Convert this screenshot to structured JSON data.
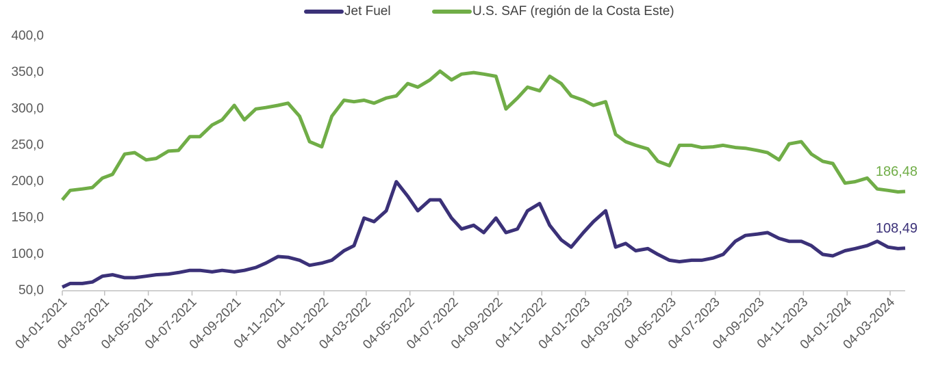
{
  "chart_data": {
    "type": "line",
    "x": [
      "2021-01-04",
      "2021-01-15",
      "2021-02-01",
      "2021-02-15",
      "2021-03-01",
      "2021-03-15",
      "2021-04-01",
      "2021-04-15",
      "2021-05-01",
      "2021-05-15",
      "2021-06-01",
      "2021-06-15",
      "2021-07-01",
      "2021-07-15",
      "2021-08-01",
      "2021-08-15",
      "2021-09-01",
      "2021-09-15",
      "2021-10-01",
      "2021-10-15",
      "2021-11-01",
      "2021-11-15",
      "2021-12-01",
      "2021-12-15",
      "2022-01-01",
      "2022-01-15",
      "2022-02-01",
      "2022-02-15",
      "2022-03-01",
      "2022-03-15",
      "2022-04-01",
      "2022-04-15",
      "2022-05-01",
      "2022-05-15",
      "2022-06-01",
      "2022-06-15",
      "2022-07-01",
      "2022-07-15",
      "2022-08-01",
      "2022-08-15",
      "2022-09-01",
      "2022-09-15",
      "2022-10-01",
      "2022-10-15",
      "2022-11-01",
      "2022-11-15",
      "2022-12-01",
      "2022-12-15",
      "2023-01-01",
      "2023-01-15",
      "2023-02-01",
      "2023-02-15",
      "2023-03-01",
      "2023-03-15",
      "2023-04-01",
      "2023-04-15",
      "2023-05-01",
      "2023-05-15",
      "2023-06-01",
      "2023-06-15",
      "2023-07-01",
      "2023-07-15",
      "2023-08-01",
      "2023-08-15",
      "2023-09-01",
      "2023-09-15",
      "2023-10-01",
      "2023-10-15",
      "2023-11-01",
      "2023-11-15",
      "2023-12-01",
      "2023-12-15",
      "2024-01-01",
      "2024-01-15",
      "2024-02-01",
      "2024-02-15",
      "2024-03-01",
      "2024-03-15",
      "2024-03-25"
    ],
    "series": [
      {
        "name": "Jet Fuel",
        "color": "#3b3178",
        "values": [
          55,
          60,
          60,
          62,
          70,
          72,
          68,
          68,
          70,
          72,
          73,
          75,
          78,
          78,
          76,
          78,
          76,
          78,
          82,
          88,
          97,
          96,
          92,
          85,
          88,
          92,
          105,
          112,
          150,
          145,
          160,
          200,
          180,
          160,
          175,
          175,
          150,
          135,
          140,
          130,
          150,
          130,
          135,
          160,
          170,
          140,
          120,
          110,
          130,
          145,
          160,
          110,
          115,
          105,
          108,
          100,
          92,
          90,
          92,
          92,
          95,
          100,
          118,
          126,
          128,
          130,
          122,
          118,
          118,
          112,
          100,
          98,
          105,
          108,
          112,
          118,
          110,
          108,
          108.49
        ],
        "value_labels": [
          null,
          null,
          null,
          null,
          null,
          null,
          null,
          null,
          null,
          null,
          null,
          null,
          null,
          null,
          null,
          null,
          null,
          null,
          null,
          null,
          null,
          null,
          null,
          null,
          null,
          null,
          null,
          null,
          null,
          null,
          null,
          null,
          null,
          null,
          null,
          null,
          null,
          null,
          null,
          null,
          null,
          null,
          null,
          null,
          null,
          null,
          null,
          null,
          null,
          null,
          null,
          null,
          null,
          null,
          null,
          null,
          null,
          null,
          null,
          null,
          null,
          null,
          null,
          null,
          null,
          null,
          null,
          null,
          null,
          null,
          null,
          null,
          null,
          null,
          null,
          null,
          null,
          null,
          "108,49"
        ]
      },
      {
        "name": "U.S. SAF (región de la Costa Este)",
        "color": "#70ad47",
        "values": [
          175,
          188,
          190,
          192,
          205,
          210,
          238,
          240,
          230,
          232,
          242,
          243,
          262,
          262,
          278,
          285,
          305,
          285,
          300,
          302,
          305,
          308,
          290,
          255,
          248,
          290,
          312,
          310,
          312,
          308,
          315,
          318,
          335,
          330,
          340,
          352,
          340,
          348,
          350,
          348,
          345,
          300,
          315,
          330,
          325,
          345,
          335,
          318,
          312,
          305,
          310,
          265,
          255,
          250,
          245,
          228,
          222,
          250,
          250,
          247,
          248,
          250,
          247,
          246,
          243,
          240,
          230,
          252,
          255,
          238,
          228,
          225,
          198,
          200,
          205,
          190,
          188,
          186,
          186.48
        ],
        "value_labels": [
          null,
          null,
          null,
          null,
          null,
          null,
          null,
          null,
          null,
          null,
          null,
          null,
          null,
          null,
          null,
          null,
          null,
          null,
          null,
          null,
          null,
          null,
          null,
          null,
          null,
          null,
          null,
          null,
          null,
          null,
          null,
          null,
          null,
          null,
          null,
          null,
          null,
          null,
          null,
          null,
          null,
          null,
          null,
          null,
          null,
          null,
          null,
          null,
          null,
          null,
          null,
          null,
          null,
          null,
          null,
          null,
          null,
          null,
          null,
          null,
          null,
          null,
          null,
          null,
          null,
          null,
          null,
          null,
          null,
          null,
          null,
          null,
          null,
          null,
          null,
          null,
          null,
          null,
          "186,48"
        ]
      }
    ],
    "xlim": [
      "2021-01-04",
      "2024-03-25"
    ],
    "xticks": [
      {
        "value": "2021-01-04",
        "label": "04-01-2021"
      },
      {
        "value": "2021-03-04",
        "label": "04-03-2021"
      },
      {
        "value": "2021-05-04",
        "label": "04-05-2021"
      },
      {
        "value": "2021-07-04",
        "label": "04-07-2021"
      },
      {
        "value": "2021-09-04",
        "label": "04-09-2021"
      },
      {
        "value": "2021-11-04",
        "label": "04-11-2021"
      },
      {
        "value": "2022-01-04",
        "label": "04-01-2022"
      },
      {
        "value": "2022-03-04",
        "label": "04-03-2022"
      },
      {
        "value": "2022-05-04",
        "label": "04-05-2022"
      },
      {
        "value": "2022-07-04",
        "label": "04-07-2022"
      },
      {
        "value": "2022-09-04",
        "label": "04-09-2022"
      },
      {
        "value": "2022-11-04",
        "label": "04-11-2022"
      },
      {
        "value": "2023-01-04",
        "label": "04-01-2023"
      },
      {
        "value": "2023-03-04",
        "label": "04-03-2023"
      },
      {
        "value": "2023-05-04",
        "label": "04-05-2023"
      },
      {
        "value": "2023-07-04",
        "label": "04-07-2023"
      },
      {
        "value": "2023-09-04",
        "label": "04-09-2023"
      },
      {
        "value": "2023-11-04",
        "label": "04-11-2023"
      },
      {
        "value": "2024-01-04",
        "label": "04-01-2024"
      },
      {
        "value": "2024-03-04",
        "label": "04-03-2024"
      }
    ],
    "ylim": [
      50,
      400
    ],
    "yticks": [
      {
        "value": 50,
        "label": "50,0"
      },
      {
        "value": 100,
        "label": "100,0"
      },
      {
        "value": 150,
        "label": "150,0"
      },
      {
        "value": 200,
        "label": "200,0"
      },
      {
        "value": 250,
        "label": "250,0"
      },
      {
        "value": 300,
        "label": "300,0"
      },
      {
        "value": 350,
        "label": "350,0"
      },
      {
        "value": 400,
        "label": "400,0"
      }
    ],
    "grid": false,
    "legend": "top"
  }
}
